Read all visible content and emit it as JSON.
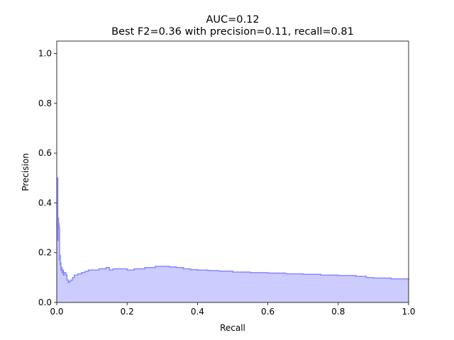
{
  "chart_data": {
    "type": "area",
    "title": "AUC=0.12",
    "subtitle": "Best F2=0.36 with precision=0.11, recall=0.81",
    "xlabel": "Recall",
    "ylabel": "Precision",
    "xlim": [
      0.0,
      1.0
    ],
    "ylim": [
      0.0,
      1.05
    ],
    "xticks": [
      "0.0",
      "0.2",
      "0.4",
      "0.6",
      "0.8",
      "1.0"
    ],
    "yticks": [
      "0.0",
      "0.2",
      "0.4",
      "0.6",
      "0.8",
      "1.0"
    ],
    "grid": false,
    "fill_color": "#ccccff",
    "line_color": "#8888ff",
    "series": [
      {
        "x": [
          0.0,
          0.003,
          0.003,
          0.004,
          0.005,
          0.006,
          0.007,
          0.008,
          0.009,
          0.01,
          0.011,
          0.012,
          0.013,
          0.015,
          0.017,
          0.019,
          0.021,
          0.023,
          0.026,
          0.029,
          0.033,
          0.036,
          0.04,
          0.045,
          0.05,
          0.06,
          0.07,
          0.08,
          0.09,
          0.1,
          0.12,
          0.14,
          0.15,
          0.16,
          0.18,
          0.2,
          0.22,
          0.25,
          0.28,
          0.3,
          0.32,
          0.34,
          0.36,
          0.38,
          0.4,
          0.43,
          0.46,
          0.5,
          0.55,
          0.6,
          0.65,
          0.7,
          0.75,
          0.8,
          0.85,
          0.88,
          0.9,
          0.95,
          1.0
        ],
        "y": [
          0.5,
          0.5,
          0.25,
          0.34,
          0.32,
          0.31,
          0.3,
          0.17,
          0.19,
          0.15,
          0.16,
          0.13,
          0.14,
          0.12,
          0.13,
          0.11,
          0.12,
          0.12,
          0.11,
          0.09,
          0.08,
          0.085,
          0.09,
          0.1,
          0.11,
          0.115,
          0.12,
          0.125,
          0.13,
          0.13,
          0.135,
          0.14,
          0.13,
          0.135,
          0.135,
          0.13,
          0.135,
          0.14,
          0.145,
          0.145,
          0.143,
          0.14,
          0.135,
          0.132,
          0.13,
          0.128,
          0.126,
          0.122,
          0.12,
          0.118,
          0.115,
          0.113,
          0.11,
          0.108,
          0.105,
          0.1,
          0.098,
          0.095,
          0.092
        ]
      }
    ]
  }
}
